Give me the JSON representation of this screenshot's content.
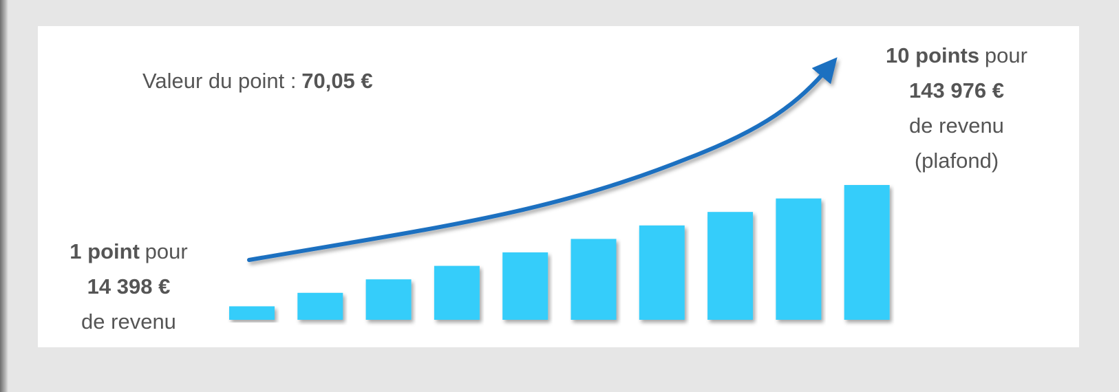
{
  "chart_data": {
    "type": "bar",
    "values": [
      1,
      2,
      3,
      4,
      5,
      6,
      7,
      8,
      9,
      10
    ],
    "color": "#35cdfa",
    "ylim": [
      0,
      10
    ],
    "annotations": [
      {
        "lines": [
          [
            {
              "text": "Valeur du point :"
            },
            {
              "text": "70,05 €",
              "bold": true
            }
          ]
        ]
      },
      {
        "lines": [
          [
            {
              "text": "1 point",
              "bold": true
            },
            {
              "text": "pour"
            }
          ],
          [
            {
              "text": "14 398 €",
              "bold": true
            }
          ],
          [
            {
              "text": "de revenu"
            }
          ]
        ]
      },
      {
        "lines": [
          [
            {
              "text": "10 points",
              "bold": true
            },
            {
              "text": "pour"
            }
          ],
          [
            {
              "text": "143 976 €",
              "bold": true
            }
          ],
          [
            {
              "text": "de revenu"
            }
          ],
          [
            {
              "text": "(plafond)"
            }
          ]
        ]
      }
    ]
  }
}
